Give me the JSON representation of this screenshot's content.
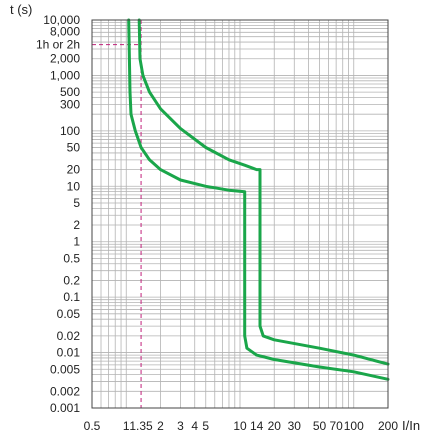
{
  "chart_data": {
    "type": "line",
    "title": "",
    "xlabel": "I/In",
    "ylabel": "t (s)",
    "x_scale": "log",
    "y_scale": "log",
    "xlim": [
      0.5,
      200
    ],
    "ylim": [
      0.001,
      10000
    ],
    "grid": true,
    "legend": "none",
    "x_tick_values": [
      0.5,
      1,
      1.35,
      2,
      3,
      4,
      5,
      10,
      14,
      20,
      30,
      50,
      70,
      100,
      200
    ],
    "x_tick_labels": [
      "0.5",
      "1",
      "1.35",
      "2",
      "3",
      "4",
      "5",
      "10",
      "14",
      "20",
      "30",
      "50",
      "70",
      "100",
      "200"
    ],
    "y_tick_values": [
      10000,
      8000,
      2000,
      1000,
      500,
      300,
      100,
      50,
      20,
      10,
      5,
      2,
      1,
      0.5,
      0.2,
      0.1,
      0.05,
      0.02,
      0.01,
      0.005,
      0.002,
      0.001
    ],
    "y_tick_labels": [
      "10,000",
      "8,000",
      "2,000",
      "1,000",
      "500",
      "300",
      "100",
      "50",
      "20",
      "10",
      "5",
      "2",
      "1",
      "0.5",
      "0.2",
      "0.1",
      "0.05",
      "0.02",
      "0.01",
      "0.005",
      "0.002",
      "0.001"
    ],
    "annotation": {
      "label": "1h or 2h",
      "x": 1.35,
      "y": 3600
    },
    "series": [
      {
        "color": "#1aa64a",
        "points": [
          [
            1.05,
            10000
          ],
          [
            1.08,
            500
          ],
          [
            1.1,
            200
          ],
          [
            1.2,
            100
          ],
          [
            1.35,
            50
          ],
          [
            1.6,
            30
          ],
          [
            2,
            20
          ],
          [
            3,
            13
          ],
          [
            5,
            10
          ],
          [
            8,
            8.5
          ],
          [
            11,
            8
          ],
          [
            11,
            0.02
          ],
          [
            11.5,
            0.012
          ],
          [
            14,
            0.009
          ],
          [
            20,
            0.0075
          ],
          [
            50,
            0.0055
          ],
          [
            100,
            0.0045
          ],
          [
            200,
            0.0033
          ]
        ]
      },
      {
        "color": "#1aa64a",
        "points": [
          [
            1.3,
            10000
          ],
          [
            1.32,
            2000
          ],
          [
            1.4,
            1000
          ],
          [
            1.6,
            500
          ],
          [
            2,
            250
          ],
          [
            3,
            110
          ],
          [
            5,
            50
          ],
          [
            8,
            30
          ],
          [
            11,
            24
          ],
          [
            14,
            20
          ],
          [
            15,
            20
          ],
          [
            15,
            0.03
          ],
          [
            16,
            0.02
          ],
          [
            20,
            0.017
          ],
          [
            50,
            0.012
          ],
          [
            100,
            0.009
          ],
          [
            200,
            0.0062
          ]
        ]
      }
    ]
  }
}
